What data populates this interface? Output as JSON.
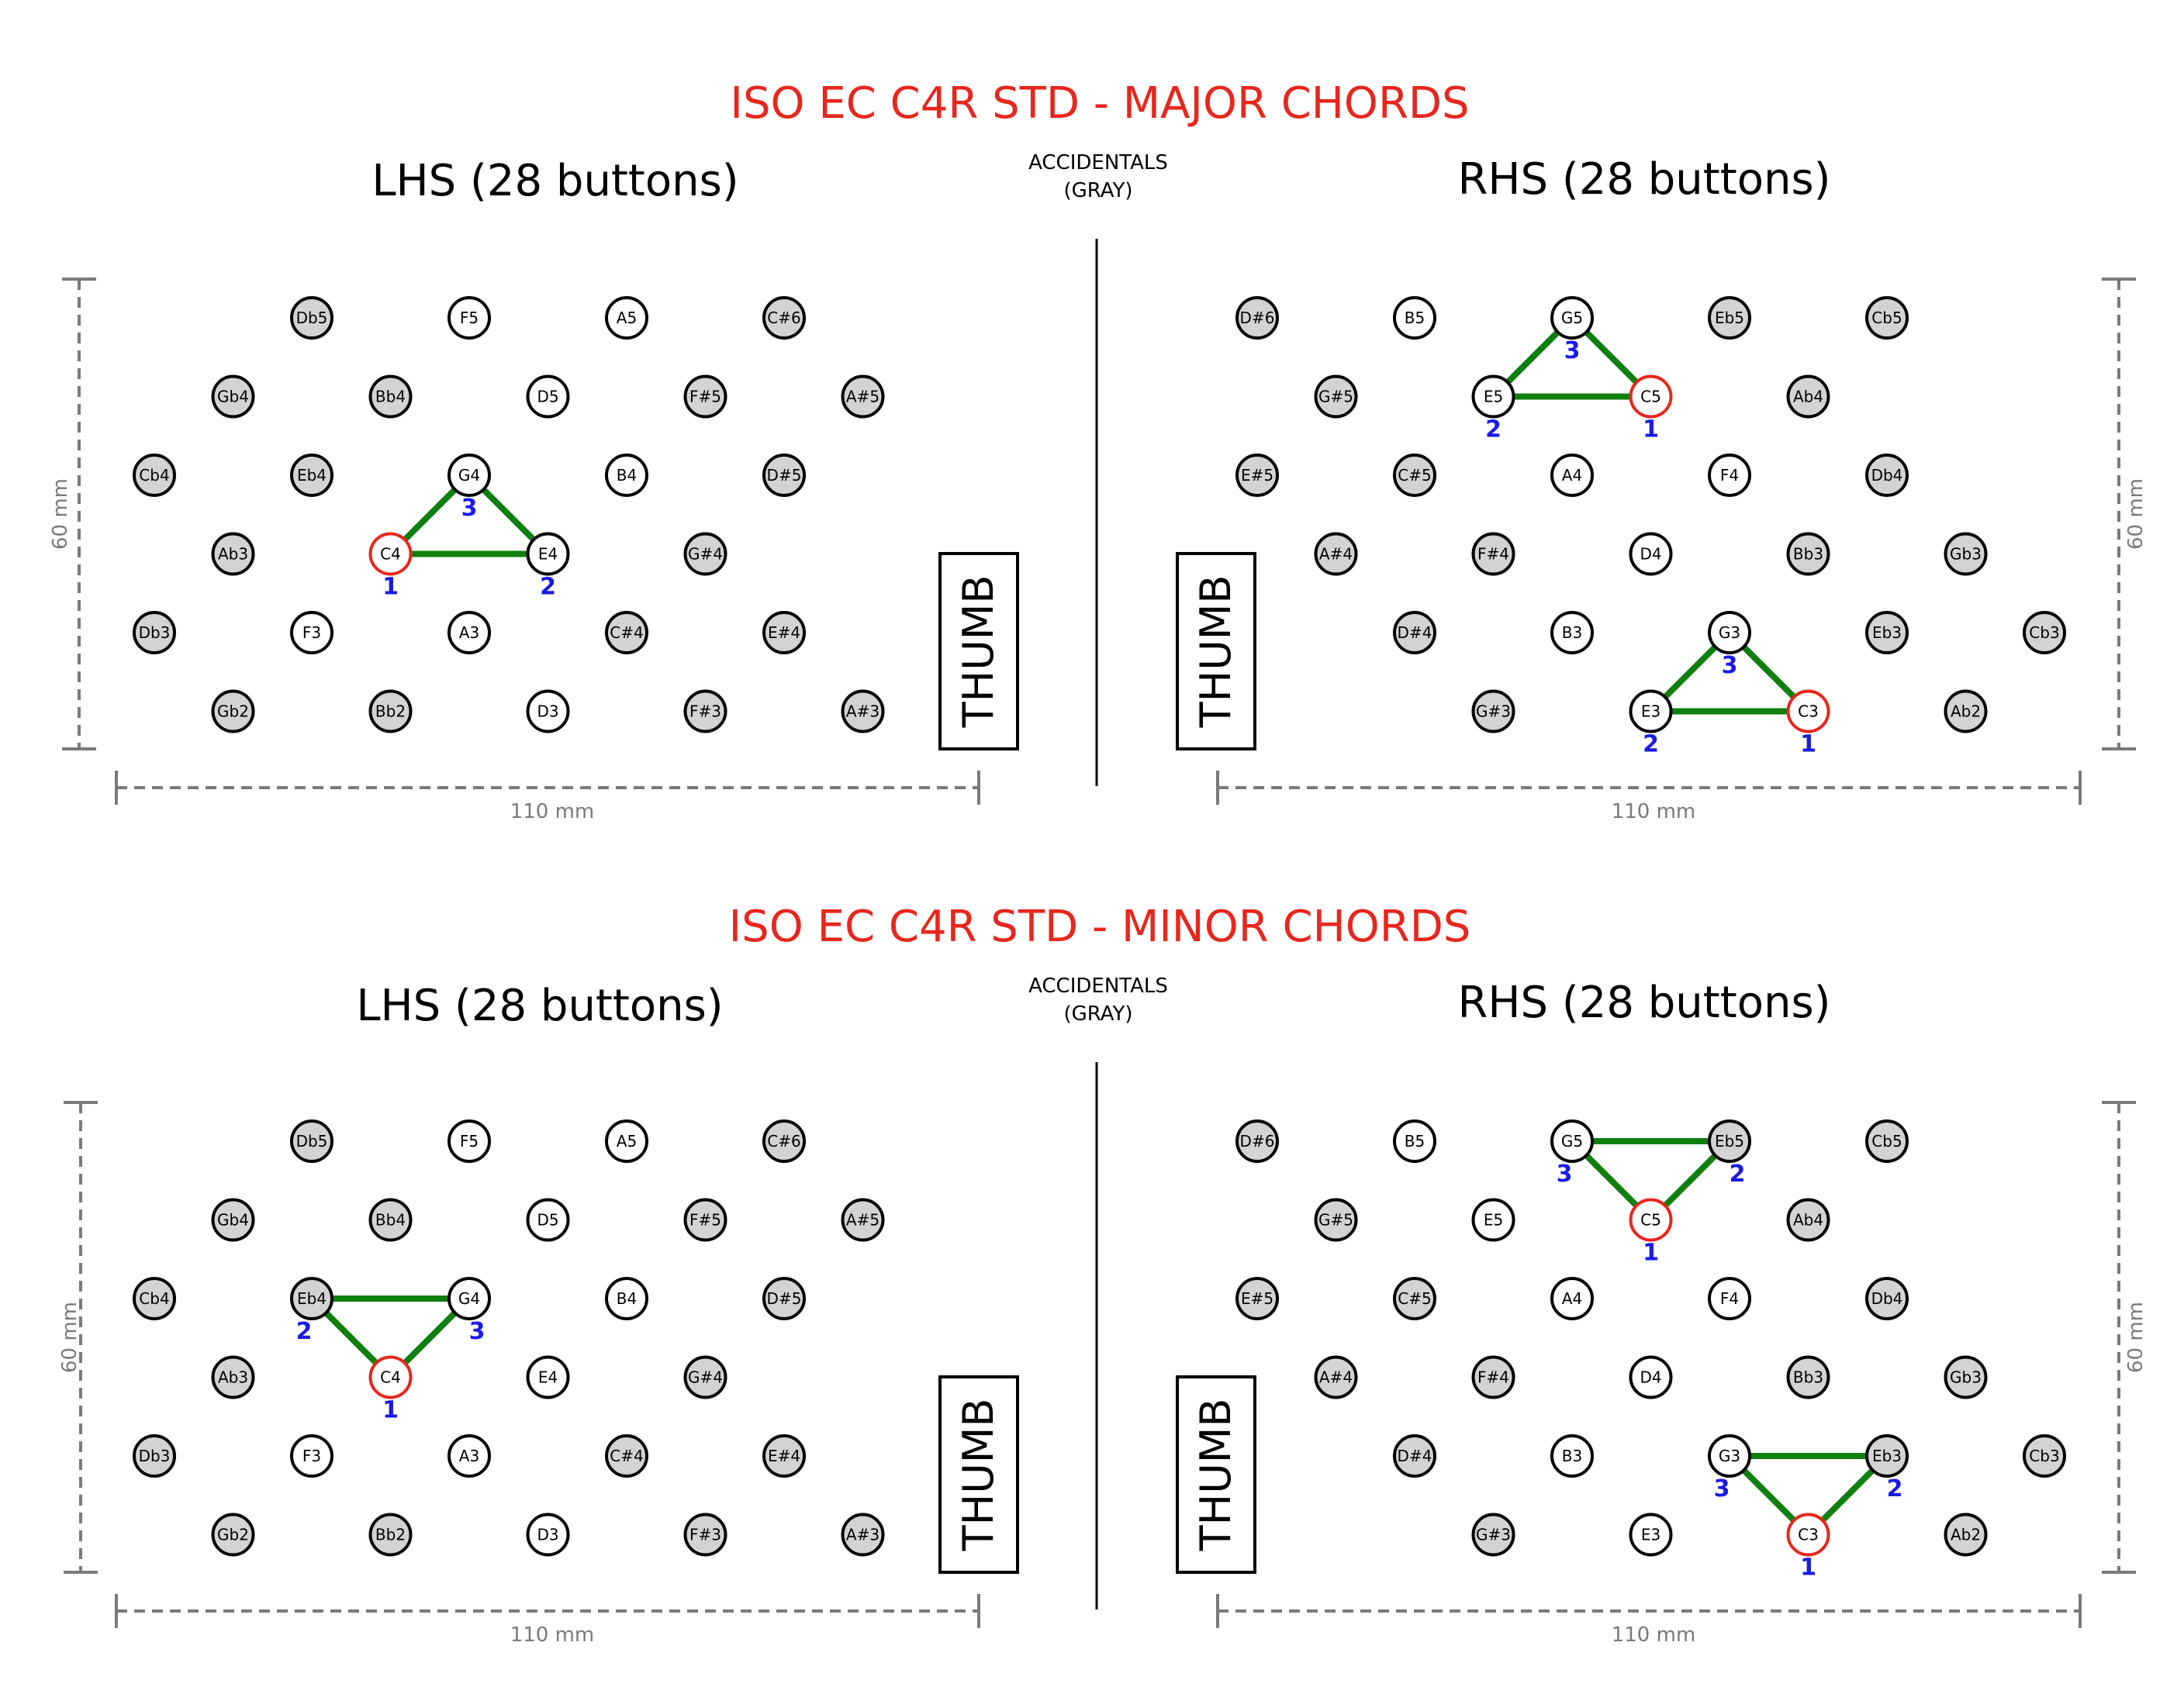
{
  "colors": {
    "accidental_fill": "#d3d3d3",
    "natural_fill": "#ffffff",
    "button_stroke": "#000000",
    "root_stroke": "#e8261c",
    "chord_line": "#0f7f0f",
    "finger_number": "#1a1ae6",
    "title": "#e8261c",
    "dimension": "#7a7a7a"
  },
  "panels": [
    {
      "title": "ISO EC C4R STD - MAJOR CHORDS",
      "accidentals_note_line1": "ACCIDENTALS",
      "accidentals_note_line2": "(GRAY)",
      "thumb_label": "THUMB",
      "height_dimension": "60 mm",
      "width_dimension": "110 mm",
      "lhs": {
        "title": "LHS (28 buttons)",
        "rows": [
          [
            null,
            null,
            "Db5",
            null,
            "F5",
            null,
            "A5",
            null,
            "C#6",
            null,
            null
          ],
          [
            null,
            "Gb4",
            null,
            "Bb4",
            null,
            "D5",
            null,
            "F#5",
            null,
            "A#5",
            null
          ],
          [
            "Cb4",
            null,
            "Eb4",
            null,
            "G4",
            null,
            "B4",
            null,
            "D#5",
            null,
            null
          ],
          [
            null,
            "Ab3",
            null,
            "C4",
            null,
            "E4",
            null,
            "G#4",
            null,
            null,
            null
          ],
          [
            "Db3",
            null,
            "F3",
            null,
            "A3",
            null,
            "C#4",
            null,
            "E#4",
            null,
            null
          ],
          [
            null,
            "Gb2",
            null,
            "Bb2",
            null,
            "D3",
            null,
            "F#3",
            null,
            "A#3",
            null
          ]
        ],
        "chords": [
          {
            "notes": [
              "C4",
              "E4",
              "G4"
            ],
            "root": "C4",
            "fingers": {
              "C4": "1",
              "E4": "2",
              "G4": "3"
            }
          }
        ]
      },
      "rhs": {
        "title": "RHS (28 buttons)",
        "rows": [
          [
            "D#6",
            null,
            "B5",
            null,
            "G5",
            null,
            "Eb5",
            null,
            "Cb5",
            null,
            null
          ],
          [
            null,
            "G#5",
            null,
            "E5",
            null,
            "C5",
            null,
            "Ab4",
            null,
            null,
            null
          ],
          [
            "E#5",
            null,
            "C#5",
            null,
            "A4",
            null,
            "F4",
            null,
            "Db4",
            null,
            null
          ],
          [
            null,
            "A#4",
            null,
            "F#4",
            null,
            "D4",
            null,
            "Bb3",
            null,
            "Gb3",
            null
          ],
          [
            null,
            null,
            "D#4",
            null,
            "B3",
            null,
            "G3",
            null,
            "Eb3",
            null,
            "Cb3"
          ],
          [
            null,
            null,
            null,
            "G#3",
            null,
            "E3",
            null,
            "C3",
            null,
            "Ab2",
            null
          ]
        ],
        "chords": [
          {
            "notes": [
              "C5",
              "E5",
              "G5"
            ],
            "root": "C5",
            "fingers": {
              "C5": "1",
              "E5": "2",
              "G5": "3"
            }
          },
          {
            "notes": [
              "C3",
              "E3",
              "G3"
            ],
            "root": "C3",
            "fingers": {
              "C3": "1",
              "E3": "2",
              "G3": "3"
            }
          }
        ]
      }
    },
    {
      "title": "ISO EC C4R STD - MINOR CHORDS",
      "accidentals_note_line1": "ACCIDENTALS",
      "accidentals_note_line2": "(GRAY)",
      "thumb_label": "THUMB",
      "height_dimension": "60 mm",
      "width_dimension": "110 mm",
      "lhs": {
        "title": "LHS (28 buttons)",
        "rows": [
          [
            null,
            null,
            "Db5",
            null,
            "F5",
            null,
            "A5",
            null,
            "C#6",
            null,
            null
          ],
          [
            null,
            "Gb4",
            null,
            "Bb4",
            null,
            "D5",
            null,
            "F#5",
            null,
            "A#5",
            null
          ],
          [
            "Cb4",
            null,
            "Eb4",
            null,
            "G4",
            null,
            "B4",
            null,
            "D#5",
            null,
            null
          ],
          [
            null,
            "Ab3",
            null,
            "C4",
            null,
            "E4",
            null,
            "G#4",
            null,
            null,
            null
          ],
          [
            "Db3",
            null,
            "F3",
            null,
            "A3",
            null,
            "C#4",
            null,
            "E#4",
            null,
            null
          ],
          [
            null,
            "Gb2",
            null,
            "Bb2",
            null,
            "D3",
            null,
            "F#3",
            null,
            "A#3",
            null
          ]
        ],
        "chords": [
          {
            "notes": [
              "C4",
              "Eb4",
              "G4"
            ],
            "root": "C4",
            "fingers": {
              "C4": "1",
              "Eb4": "2",
              "G4": "3"
            }
          }
        ]
      },
      "rhs": {
        "title": "RHS (28 buttons)",
        "rows": [
          [
            "D#6",
            null,
            "B5",
            null,
            "G5",
            null,
            "Eb5",
            null,
            "Cb5",
            null,
            null
          ],
          [
            null,
            "G#5",
            null,
            "E5",
            null,
            "C5",
            null,
            "Ab4",
            null,
            null,
            null
          ],
          [
            "E#5",
            null,
            "C#5",
            null,
            "A4",
            null,
            "F4",
            null,
            "Db4",
            null,
            null
          ],
          [
            null,
            "A#4",
            null,
            "F#4",
            null,
            "D4",
            null,
            "Bb3",
            null,
            "Gb3",
            null
          ],
          [
            null,
            null,
            "D#4",
            null,
            "B3",
            null,
            "G3",
            null,
            "Eb3",
            null,
            "Cb3"
          ],
          [
            null,
            null,
            null,
            "G#3",
            null,
            "E3",
            null,
            "C3",
            null,
            "Ab2",
            null
          ]
        ],
        "chords": [
          {
            "notes": [
              "C5",
              "Eb5",
              "G5"
            ],
            "root": "C5",
            "fingers": {
              "C5": "1",
              "Eb5": "2",
              "G5": "3"
            }
          },
          {
            "notes": [
              "C3",
              "Eb3",
              "G3"
            ],
            "root": "C3",
            "fingers": {
              "C3": "1",
              "Eb3": "2",
              "G3": "3"
            }
          }
        ]
      }
    }
  ]
}
